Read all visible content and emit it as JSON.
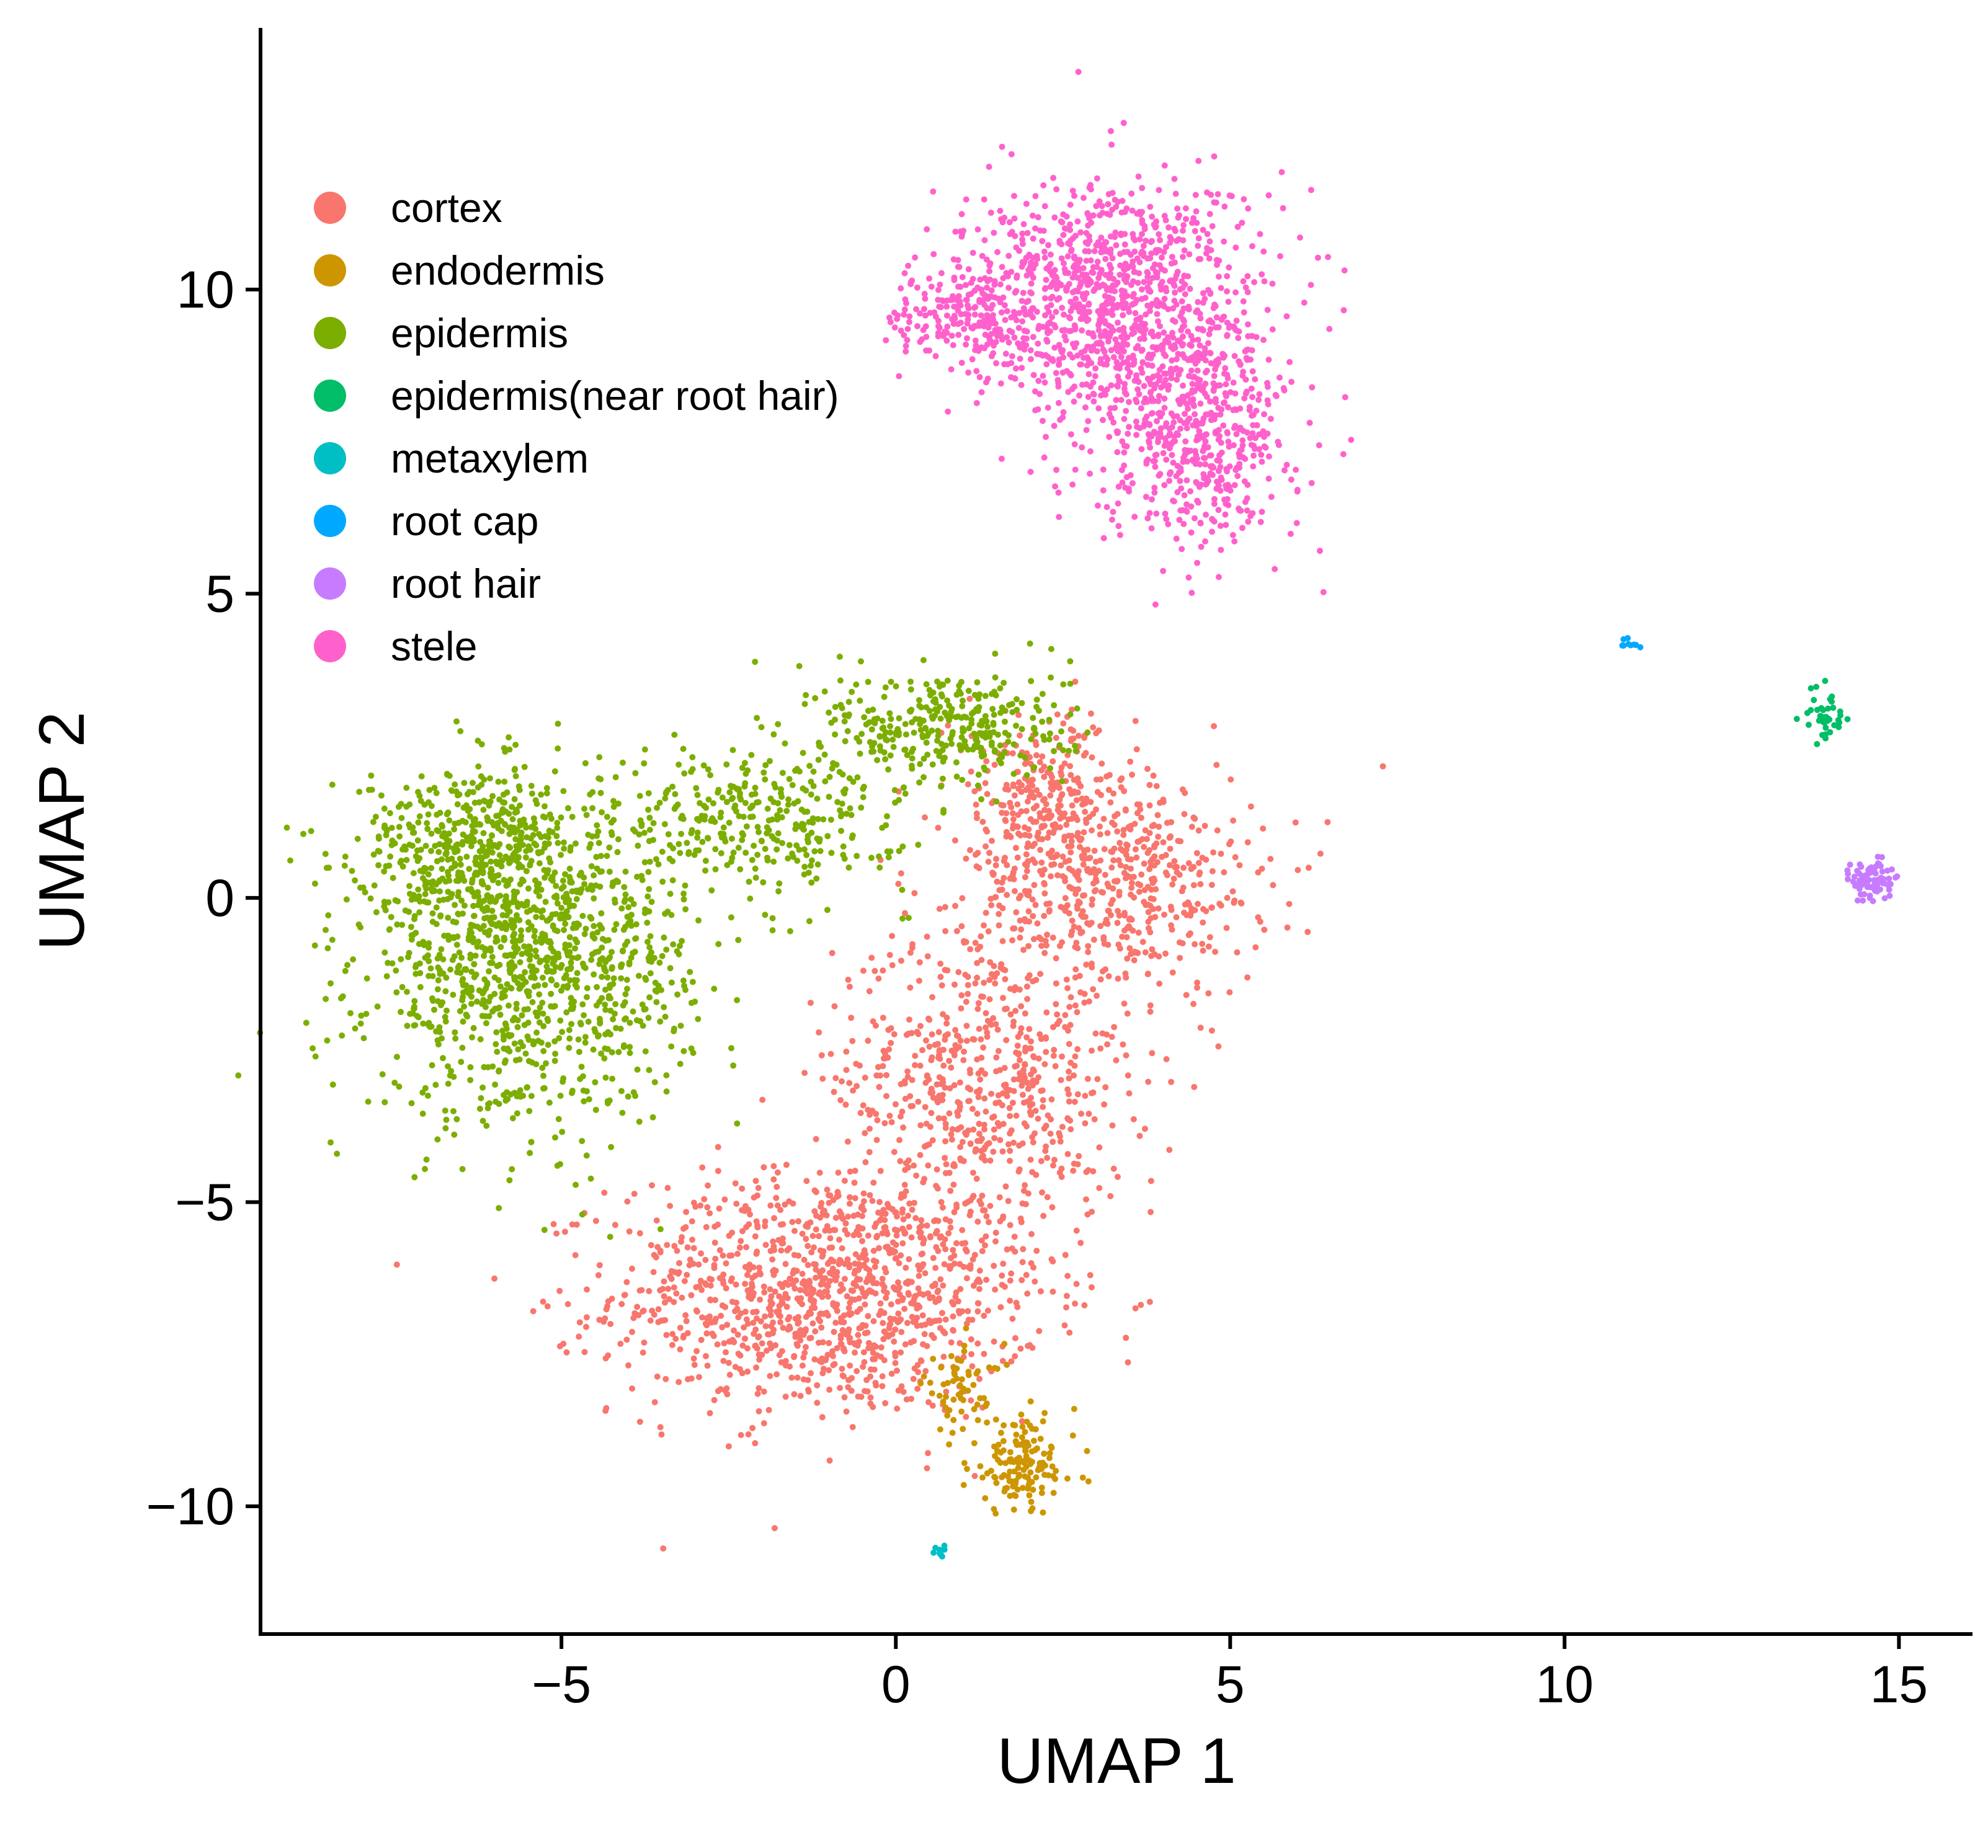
{
  "chart_data": {
    "type": "scatter",
    "title": "",
    "xlabel": "UMAP 1",
    "ylabel": "UMAP 2",
    "xlim": [
      -9.5,
      16.1
    ],
    "ylim": [
      -12.1,
      14.3
    ],
    "xticks": [
      -5,
      0,
      5,
      10,
      15
    ],
    "yticks": [
      -10,
      -5,
      0,
      5,
      10
    ],
    "xtick_labels": [
      "−5",
      "0",
      "5",
      "10",
      "15"
    ],
    "ytick_labels": [
      "−10",
      "−5",
      "0",
      "5",
      "10"
    ],
    "grid": false,
    "legend_position": "top-left",
    "series": [
      {
        "name": "cortex",
        "color": "#F8766D",
        "n": 2600,
        "clusters": [
          {
            "cx": -1.0,
            "cy": -6.5,
            "sx": 1.6,
            "sy": 1.0,
            "w": 0.45
          },
          {
            "cx": 1.3,
            "cy": -3.0,
            "sx": 1.1,
            "sy": 1.3,
            "w": 0.25
          },
          {
            "cx": 3.3,
            "cy": 0.2,
            "sx": 1.1,
            "sy": 0.9,
            "w": 0.2
          },
          {
            "cx": 2.2,
            "cy": 1.6,
            "sx": 0.7,
            "sy": 0.7,
            "w": 0.1
          }
        ]
      },
      {
        "name": "endodermis",
        "color": "#CD9600",
        "n": 200,
        "clusters": [
          {
            "cx": 1.9,
            "cy": -9.3,
            "sx": 0.4,
            "sy": 0.4,
            "w": 0.7
          },
          {
            "cx": 1.0,
            "cy": -8.1,
            "sx": 0.3,
            "sy": 0.4,
            "w": 0.3
          }
        ]
      },
      {
        "name": "epidermis",
        "color": "#7CAE00",
        "n": 2200,
        "clusters": [
          {
            "cx": -5.5,
            "cy": -1.0,
            "sx": 1.2,
            "sy": 1.3,
            "w": 0.55
          },
          {
            "cx": -6.4,
            "cy": 0.9,
            "sx": 0.8,
            "sy": 0.6,
            "w": 0.15
          },
          {
            "cx": -2.0,
            "cy": 1.3,
            "sx": 1.1,
            "sy": 0.6,
            "w": 0.15
          },
          {
            "cx": 0.8,
            "cy": 2.8,
            "sx": 0.9,
            "sy": 0.5,
            "w": 0.15
          }
        ]
      },
      {
        "name": "epidermis(near root hair)",
        "color": "#00BE67",
        "n": 40,
        "clusters": [
          {
            "cx": 13.9,
            "cy": 3.0,
            "sx": 0.15,
            "sy": 0.25,
            "w": 1.0
          }
        ]
      },
      {
        "name": "metaxylem",
        "color": "#00BFC4",
        "n": 10,
        "clusters": [
          {
            "cx": 0.65,
            "cy": -10.75,
            "sx": 0.06,
            "sy": 0.08,
            "w": 1.0
          }
        ]
      },
      {
        "name": "root cap",
        "color": "#00A9FF",
        "n": 10,
        "clusters": [
          {
            "cx": 10.95,
            "cy": 4.18,
            "sx": 0.1,
            "sy": 0.04,
            "w": 1.0
          }
        ]
      },
      {
        "name": "root hair",
        "color": "#C77CFF",
        "n": 80,
        "clusters": [
          {
            "cx": 14.6,
            "cy": 0.3,
            "sx": 0.15,
            "sy": 0.18,
            "w": 1.0
          }
        ]
      },
      {
        "name": "stele",
        "color": "#FF61CC",
        "n": 1800,
        "clusters": [
          {
            "cx": 3.2,
            "cy": 9.8,
            "sx": 1.1,
            "sy": 1.0,
            "w": 0.6
          },
          {
            "cx": 4.5,
            "cy": 7.6,
            "sx": 0.7,
            "sy": 0.9,
            "w": 0.3
          },
          {
            "cx": 1.0,
            "cy": 9.6,
            "sx": 0.5,
            "sy": 0.4,
            "w": 0.1
          }
        ]
      }
    ]
  }
}
